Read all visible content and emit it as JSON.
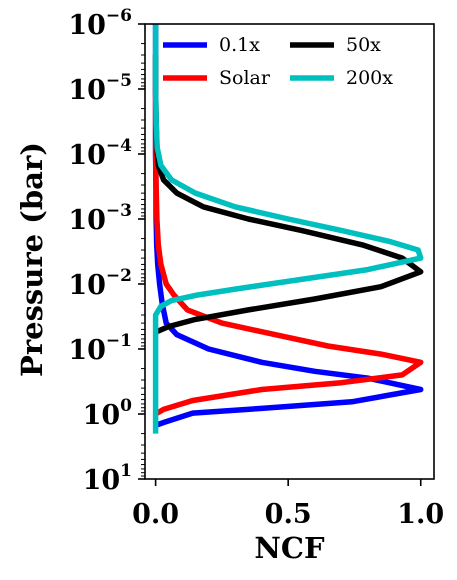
{
  "chart_data": {
    "type": "line",
    "xlabel": "NCF",
    "ylabel": "Pressure (bar)",
    "xlim": [
      -0.04,
      1.05
    ],
    "ylim_log10": [
      1,
      -6
    ],
    "y_scale": "log",
    "y_inverted": true,
    "x_ticks": [
      {
        "value": 0.0,
        "label": "0.0"
      },
      {
        "value": 0.5,
        "label": "0.5"
      },
      {
        "value": 1.0,
        "label": "1.0"
      }
    ],
    "y_ticks": [
      {
        "exp": -6,
        "base": "10",
        "sup": "−6"
      },
      {
        "exp": -5,
        "base": "10",
        "sup": "−5"
      },
      {
        "exp": -4,
        "base": "10",
        "sup": "−4"
      },
      {
        "exp": -3,
        "base": "10",
        "sup": "−3"
      },
      {
        "exp": -2,
        "base": "10",
        "sup": "−2"
      },
      {
        "exp": -1,
        "base": "10",
        "sup": "−1"
      },
      {
        "exp": 0,
        "base": "10",
        "sup": "0"
      },
      {
        "exp": 1,
        "base": "10",
        "sup": "1"
      }
    ],
    "legend_position": "top",
    "grid": false,
    "series": [
      {
        "name": "0.1x",
        "color": "#0000ff",
        "points": [
          [
            0.0,
            1e-06
          ],
          [
            0.0,
            3e-06
          ],
          [
            0.0,
            1e-05
          ],
          [
            0.0,
            3e-05
          ],
          [
            0.0,
            0.0001
          ],
          [
            0.001,
            0.0003
          ],
          [
            0.002,
            0.001
          ],
          [
            0.004,
            0.0025
          ],
          [
            0.008,
            0.005
          ],
          [
            0.015,
            0.01
          ],
          [
            0.025,
            0.02
          ],
          [
            0.04,
            0.04
          ],
          [
            0.08,
            0.06
          ],
          [
            0.2,
            0.1
          ],
          [
            0.4,
            0.16
          ],
          [
            0.6,
            0.22
          ],
          [
            0.8,
            0.28
          ],
          [
            1.0,
            0.42
          ],
          [
            0.74,
            0.65
          ],
          [
            0.4,
            0.82
          ],
          [
            0.14,
            0.97
          ],
          [
            0.03,
            1.35
          ],
          [
            0.0,
            1.5
          ]
        ]
      },
      {
        "name": "Solar",
        "color": "#ff0000",
        "points": [
          [
            0.0,
            1e-05
          ],
          [
            0.0,
            5e-05
          ],
          [
            0.0,
            0.0001
          ],
          [
            0.002,
            0.0003
          ],
          [
            0.005,
            0.001
          ],
          [
            0.01,
            0.0025
          ],
          [
            0.02,
            0.005
          ],
          [
            0.04,
            0.01
          ],
          [
            0.07,
            0.015
          ],
          [
            0.12,
            0.025
          ],
          [
            0.25,
            0.04
          ],
          [
            0.45,
            0.06
          ],
          [
            0.65,
            0.09
          ],
          [
            0.85,
            0.12
          ],
          [
            1.0,
            0.16
          ],
          [
            0.93,
            0.25
          ],
          [
            0.7,
            0.33
          ],
          [
            0.4,
            0.42
          ],
          [
            0.14,
            0.62
          ],
          [
            0.03,
            0.85
          ],
          [
            0.0,
            1.0
          ]
        ]
      },
      {
        "name": "50x",
        "color": "#000000",
        "points": [
          [
            0.0,
            3e-06
          ],
          [
            0.0,
            1e-05
          ],
          [
            0.002,
            3e-05
          ],
          [
            0.005,
            8e-05
          ],
          [
            0.01,
            0.00015
          ],
          [
            0.03,
            0.00025
          ],
          [
            0.08,
            0.0004
          ],
          [
            0.18,
            0.00065
          ],
          [
            0.35,
            0.001
          ],
          [
            0.55,
            0.0015
          ],
          [
            0.78,
            0.0025
          ],
          [
            0.93,
            0.004
          ],
          [
            1.0,
            0.0065
          ],
          [
            0.85,
            0.011
          ],
          [
            0.6,
            0.017
          ],
          [
            0.35,
            0.025
          ],
          [
            0.15,
            0.035
          ],
          [
            0.05,
            0.045
          ],
          [
            0.0,
            0.055
          ]
        ]
      },
      {
        "name": "200x",
        "color": "#00bfbf",
        "points": [
          [
            0.0,
            1e-06
          ],
          [
            0.0,
            3e-06
          ],
          [
            0.0,
            1e-05
          ],
          [
            0.002,
            3e-05
          ],
          [
            0.006,
            8e-05
          ],
          [
            0.02,
            0.00015
          ],
          [
            0.06,
            0.00025
          ],
          [
            0.15,
            0.0004
          ],
          [
            0.3,
            0.00065
          ],
          [
            0.5,
            0.001
          ],
          [
            0.7,
            0.0015
          ],
          [
            0.88,
            0.0022
          ],
          [
            0.99,
            0.003
          ],
          [
            1.0,
            0.004
          ],
          [
            0.8,
            0.006
          ],
          [
            0.55,
            0.0085
          ],
          [
            0.3,
            0.012
          ],
          [
            0.15,
            0.015
          ],
          [
            0.06,
            0.018
          ],
          [
            0.02,
            0.022
          ],
          [
            0.0,
            0.03
          ],
          [
            0.0,
            0.1
          ],
          [
            0.0,
            1.0
          ],
          [
            0.0,
            2.0
          ]
        ]
      }
    ]
  }
}
